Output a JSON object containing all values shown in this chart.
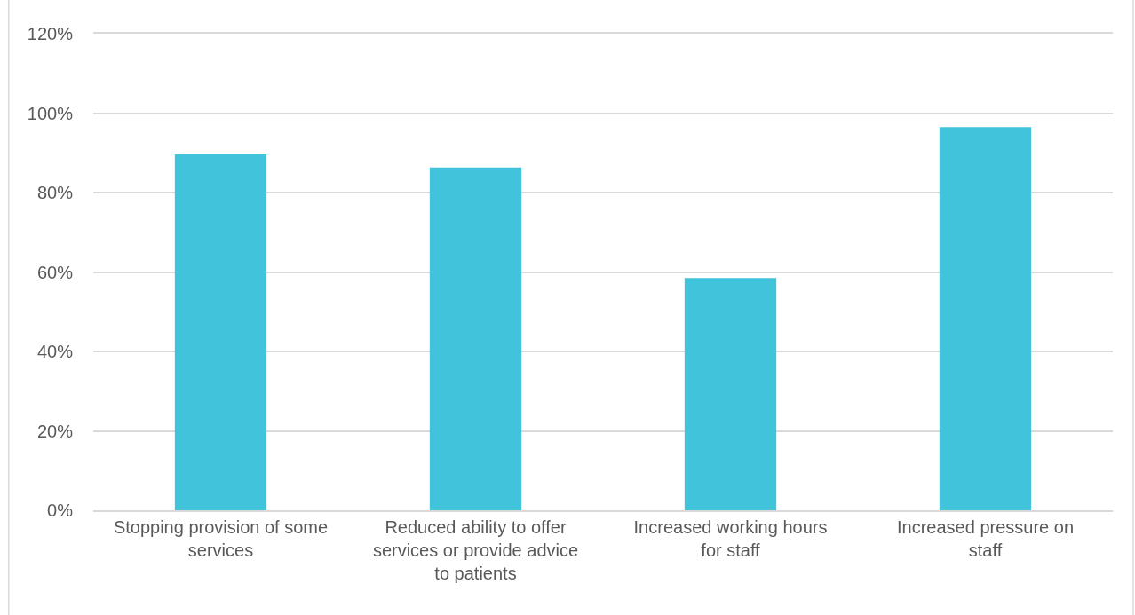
{
  "chart_data": {
    "type": "bar",
    "categories": [
      "Stopping provision of some services",
      "Reduced ability to offer services or provide advice to patients",
      "Increased working hours for staff",
      "Increased pressure on staff"
    ],
    "values": [
      89.6,
      86.3,
      58.5,
      96.5
    ],
    "color": "#42c3dc",
    "ylim": [
      0,
      120
    ],
    "yticks": [
      {
        "value": 0,
        "label": "0%"
      },
      {
        "value": 20,
        "label": "20%"
      },
      {
        "value": 40,
        "label": "40%"
      },
      {
        "value": 60,
        "label": "60%"
      },
      {
        "value": 80,
        "label": "80%"
      },
      {
        "value": 100,
        "label": "100%"
      },
      {
        "value": 120,
        "label": "120%"
      }
    ],
    "grid": "y"
  }
}
